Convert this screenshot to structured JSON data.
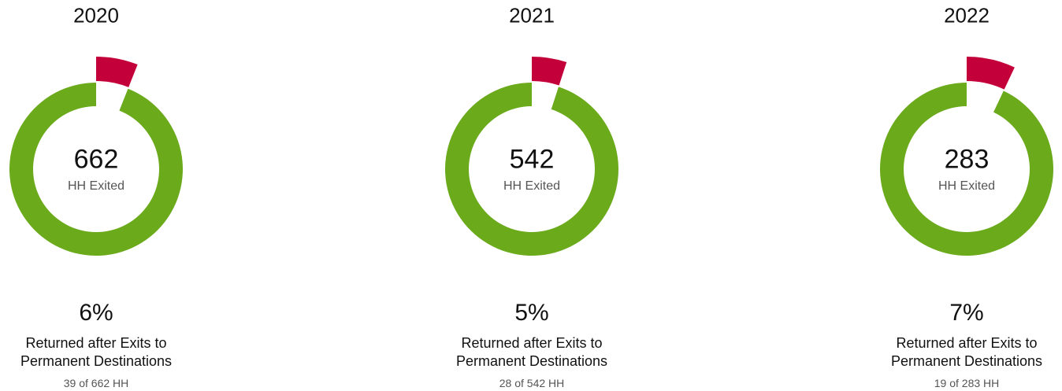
{
  "chart_data": [
    {
      "type": "donut",
      "title": "2020",
      "total": 662,
      "center_label": "HH Exited",
      "percent": 6,
      "percent_label": "6%",
      "caption": "Returned after Exits to Permanent Destinations",
      "detail": "39 of 662 HH",
      "colors": [
        "#c4003a",
        "#6aaa1b"
      ]
    },
    {
      "type": "donut",
      "title": "2021",
      "total": 542,
      "center_label": "HH Exited",
      "percent": 5,
      "percent_label": "5%",
      "caption": "Returned after Exits to Permanent Destinations",
      "detail": "28 of 542 HH",
      "colors": [
        "#c4003a",
        "#6aaa1b"
      ]
    },
    {
      "type": "donut",
      "title": "2022",
      "total": 283,
      "center_label": "HH Exited",
      "percent": 7,
      "percent_label": "7%",
      "caption": "Returned after Exits to Permanent Destinations",
      "detail": "19 of 283 HH",
      "colors": [
        "#c4003a",
        "#6aaa1b"
      ]
    }
  ]
}
